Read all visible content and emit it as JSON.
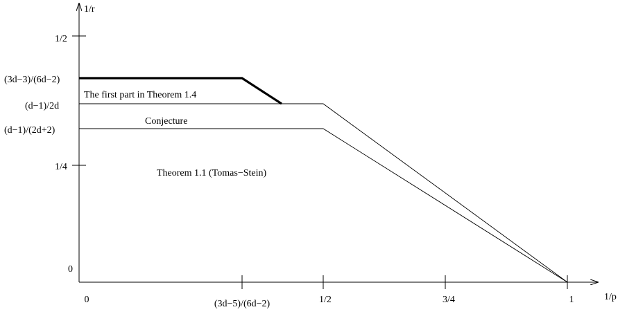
{
  "axes": {
    "x_label": "1/p",
    "y_label": "1/r",
    "x_ticks": [
      "0",
      "(3d−5)/(6d−2)",
      "1/2",
      "3/4",
      "1"
    ],
    "y_ticks": [
      "0",
      "1/4",
      "(d−1)/(2d+2)",
      "(d−1)/2d",
      "(3d−3)/(6d−2)",
      "1/2"
    ]
  },
  "annotations": {
    "first_part": "The first part in Theorem 1.4",
    "conjecture": "Conjecture",
    "tomas_stein": "Theorem 1.1 (Tomas−Stein)"
  }
}
